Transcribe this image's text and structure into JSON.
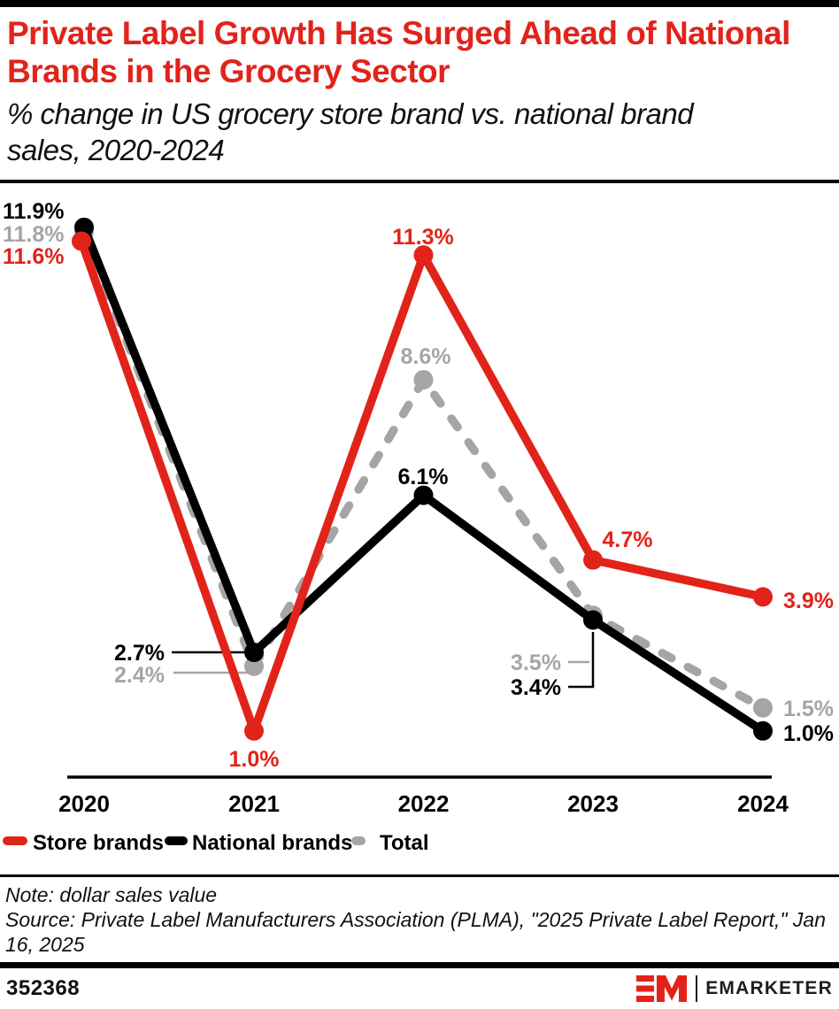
{
  "header": {
    "title": "Private Label Growth Has Surged Ahead of National Brands in the Grocery Sector",
    "subtitle": "% change in US grocery store brand vs. national brand sales, 2020-2024"
  },
  "chart_data": {
    "type": "line",
    "title": "Private Label Growth Has Surged Ahead of National Brands in the Grocery Sector",
    "subtitle": "% change in US grocery store brand vs. national brand sales, 2020-2024",
    "categories": [
      "2020",
      "2021",
      "2022",
      "2023",
      "2024"
    ],
    "series": [
      {
        "name": "Store brands",
        "color": "#e2231a",
        "style": "solid",
        "values": [
          11.6,
          1.0,
          11.3,
          4.7,
          3.9
        ],
        "labels": [
          "11.6%",
          "1.0%",
          "11.3%",
          "4.7%",
          "3.9%"
        ]
      },
      {
        "name": "National brands",
        "color": "#000000",
        "style": "solid",
        "values": [
          11.9,
          2.7,
          6.1,
          3.4,
          1.0
        ],
        "labels": [
          "11.9%",
          "2.7%",
          "6.1%",
          "3.4%",
          "1.0%"
        ]
      },
      {
        "name": "Total",
        "color": "#a5a5a5",
        "style": "dashed",
        "values": [
          11.8,
          2.4,
          8.6,
          3.5,
          1.5
        ],
        "labels": [
          "11.8%",
          "2.4%",
          "8.6%",
          "3.5%",
          "1.5%"
        ]
      }
    ],
    "ylim": [
      0,
      12.8
    ],
    "grid": false,
    "legend_position": "bottom",
    "xlabel": "",
    "ylabel": ""
  },
  "footnote": {
    "note": "Note: dollar sales value",
    "source": "Source: Private Label Manufacturers Association (PLMA), \"2025 Private Label Report,\" Jan 16, 2025"
  },
  "footer": {
    "chart_id": "352368",
    "brand": "EMARKETER"
  },
  "colors": {
    "accent_red": "#e2231a",
    "black": "#000000",
    "gray": "#a5a5a5"
  }
}
